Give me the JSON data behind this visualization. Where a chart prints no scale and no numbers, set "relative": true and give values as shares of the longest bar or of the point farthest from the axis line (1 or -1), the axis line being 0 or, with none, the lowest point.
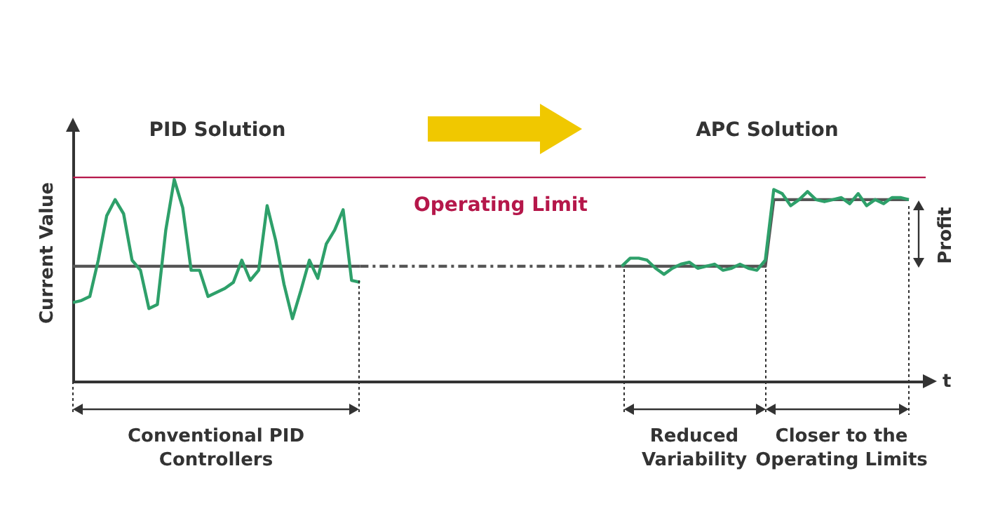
{
  "chart_data": {
    "type": "line",
    "relative": true,
    "xlabel": "t",
    "ylabel": "Current Value",
    "categories": [
      null,
      null,
      null,
      null,
      null,
      null,
      null,
      null,
      null,
      null,
      null,
      null,
      null,
      null,
      null,
      null,
      null,
      null,
      null,
      null,
      null,
      null,
      null,
      null,
      null,
      null,
      null,
      null,
      null,
      null,
      null,
      null,
      null,
      null,
      null,
      null,
      null,
      null,
      null,
      null,
      null,
      null,
      null,
      null,
      null,
      null,
      null,
      null,
      null,
      null,
      null,
      null,
      null,
      null,
      null,
      null,
      null,
      null,
      null,
      null,
      null,
      null,
      null,
      null,
      null,
      null,
      null,
      null,
      null,
      null,
      null,
      null,
      null,
      null,
      null,
      null,
      null,
      null,
      null,
      null,
      null,
      null,
      null,
      null,
      null,
      null,
      null,
      null,
      null,
      null,
      null,
      null,
      null,
      null,
      null,
      null,
      null,
      null,
      null,
      null
    ],
    "annotations": [
      "PID Solution",
      "APC Solution",
      "Profit",
      "Conventional PID Controllers",
      "Reduced Variability",
      "Closer to the Operating Limits"
    ],
    "ref_lines": [
      {
        "axis": "y",
        "value": 1.01,
        "label": "Operating Limit",
        "color": "#b5174a"
      }
    ],
    "series": [
      {
        "color": "#555555",
        "values": [
          0.57,
          0.57,
          0.57,
          0.57,
          0.57,
          0.57,
          0.57,
          0.57,
          0.57,
          0.57,
          0.57,
          0.57,
          0.57,
          0.57,
          0.57,
          0.57,
          0.57,
          0.57,
          0.57,
          0.57,
          0.57,
          0.57,
          0.57,
          0.57,
          0.57,
          0.57,
          0.57,
          0.57,
          0.57,
          0.57,
          0.57,
          0.57,
          0.57,
          0.57,
          0.57,
          null,
          null,
          null,
          null,
          null,
          null,
          null,
          null,
          null,
          null,
          null,
          null,
          null,
          null,
          null,
          null,
          null,
          null,
          null,
          null,
          null,
          null,
          null,
          null,
          null,
          null,
          null,
          null,
          null,
          null,
          null,
          null,
          null,
          null,
          null,
          null,
          null,
          null,
          null,
          null,
          null,
          null,
          null,
          null,
          null,
          null,
          null,
          null,
          null,
          null,
          null,
          null,
          null,
          null,
          null,
          null,
          null,
          null,
          null,
          null,
          null,
          null,
          null,
          null,
          null
        ]
      },
      {
        "color": "#555555",
        "line_style": "dashed",
        "values": [
          null,
          null,
          null,
          null,
          null,
          null,
          null,
          null,
          null,
          null,
          null,
          null,
          null,
          null,
          null,
          null,
          null,
          null,
          null,
          null,
          null,
          null,
          null,
          null,
          null,
          null,
          null,
          null,
          null,
          null,
          null,
          null,
          null,
          null,
          0.57,
          0.57,
          0.57,
          0.57,
          0.57,
          0.57,
          0.57,
          0.57,
          0.57,
          0.57,
          0.57,
          0.57,
          0.57,
          0.57,
          0.57,
          0.57,
          0.57,
          0.57,
          0.57,
          0.57,
          0.57,
          0.57,
          0.57,
          0.57,
          0.57,
          0.57,
          0.57,
          0.57,
          0.57,
          0.57,
          0.57,
          0.57,
          null,
          null,
          null,
          null,
          null,
          null,
          null,
          null,
          null,
          null,
          null,
          null,
          null,
          null,
          null,
          null,
          null,
          null,
          null,
          null,
          null,
          null,
          null,
          null,
          null,
          null,
          null,
          null,
          null,
          null,
          null,
          null,
          null,
          null
        ]
      },
      {
        "color": "#555555",
        "values": [
          null,
          null,
          null,
          null,
          null,
          null,
          null,
          null,
          null,
          null,
          null,
          null,
          null,
          null,
          null,
          null,
          null,
          null,
          null,
          null,
          null,
          null,
          null,
          null,
          null,
          null,
          null,
          null,
          null,
          null,
          null,
          null,
          null,
          null,
          null,
          null,
          null,
          null,
          null,
          null,
          null,
          null,
          null,
          null,
          null,
          null,
          null,
          null,
          null,
          null,
          null,
          null,
          null,
          null,
          null,
          null,
          null,
          null,
          null,
          null,
          null,
          null,
          null,
          null,
          null,
          0.57,
          0.57,
          0.57,
          0.57,
          0.57,
          0.57,
          0.57,
          0.57,
          0.57,
          0.57,
          0.57,
          0.57,
          0.57,
          0.57,
          0.57,
          0.57,
          0.57,
          0.57,
          0.9,
          0.9,
          0.9,
          0.9,
          0.9,
          0.9,
          0.9,
          0.9,
          0.9,
          0.9,
          0.9,
          0.9,
          0.9,
          0.9,
          0.9,
          0.9,
          0.9
        ]
      },
      {
        "color": "#2ea06a",
        "values": [
          0.39,
          0.4,
          0.42,
          0.6,
          0.82,
          0.9,
          0.83,
          0.6,
          0.55,
          0.36,
          0.38,
          0.75,
          1.0,
          0.86,
          0.55,
          0.55,
          0.42,
          0.44,
          0.46,
          0.49,
          0.6,
          0.5,
          0.55,
          0.87,
          0.7,
          0.48,
          0.31,
          0.45,
          0.6,
          0.51,
          0.68,
          0.75,
          0.85,
          0.5,
          0.49,
          null,
          null,
          null,
          null,
          null,
          null,
          null,
          null,
          null,
          null,
          null,
          null,
          null,
          null,
          null,
          null,
          null,
          null,
          null,
          null,
          null,
          null,
          null,
          null,
          null,
          null,
          null,
          null,
          null,
          null,
          null,
          null,
          null,
          null,
          null,
          null,
          null,
          null,
          null,
          null,
          null,
          null,
          null,
          null,
          null,
          null,
          null,
          null,
          null,
          null,
          null,
          null,
          null,
          null,
          null,
          null,
          null,
          null,
          null,
          null,
          null,
          null,
          null,
          null,
          null
        ]
      },
      {
        "color": "#2ea06a",
        "values": [
          null,
          null,
          null,
          null,
          null,
          null,
          null,
          null,
          null,
          null,
          null,
          null,
          null,
          null,
          null,
          null,
          null,
          null,
          null,
          null,
          null,
          null,
          null,
          null,
          null,
          null,
          null,
          null,
          null,
          null,
          null,
          null,
          null,
          null,
          null,
          null,
          null,
          null,
          null,
          null,
          null,
          null,
          null,
          null,
          null,
          null,
          null,
          null,
          null,
          null,
          null,
          null,
          null,
          null,
          null,
          null,
          null,
          null,
          null,
          null,
          null,
          null,
          null,
          null,
          null,
          0.57,
          0.61,
          0.61,
          0.6,
          0.56,
          0.53,
          0.56,
          0.58,
          0.59,
          0.56,
          0.57,
          0.58,
          0.55,
          0.56,
          0.58,
          0.56,
          0.55,
          0.6,
          0.95,
          0.93,
          0.87,
          0.9,
          0.94,
          0.9,
          0.89,
          0.9,
          0.91,
          0.88,
          0.93,
          0.87,
          0.9,
          0.88,
          0.91,
          0.91,
          0.9
        ]
      }
    ]
  }
}
